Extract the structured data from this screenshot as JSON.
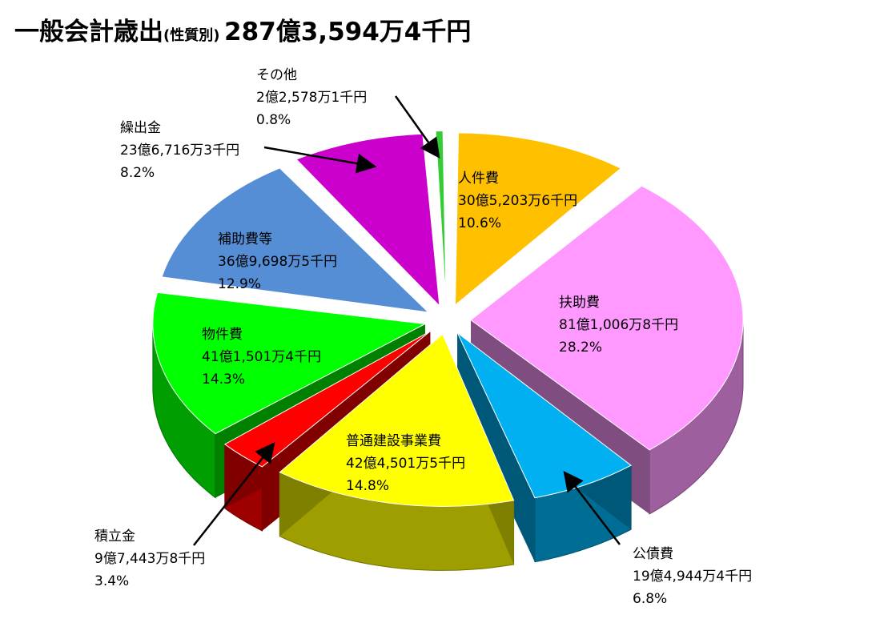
{
  "title": {
    "main": "一般会計歳出",
    "sub": "(性質別)",
    "total": "287億3,594万4千円"
  },
  "chart_data": {
    "type": "pie",
    "title": "一般会計歳出(性質別) 287億3,594万4千円",
    "unit": "千円",
    "slices": [
      {
        "name": "人件費",
        "amount": "30億5,203万6千円",
        "value": 3052036,
        "percent": 10.6,
        "color": "#ffc000"
      },
      {
        "name": "扶助費",
        "amount": "81億1,006万8千円",
        "value": 8110068,
        "percent": 28.2,
        "color": "#ff99ff"
      },
      {
        "name": "公債費",
        "amount": "19億4,944万4千円",
        "value": 1949444,
        "percent": 6.8,
        "color": "#00b0f0"
      },
      {
        "name": "普通建設事業費",
        "amount": "42億4,501万5千円",
        "value": 4245015,
        "percent": 14.8,
        "color": "#ffff00"
      },
      {
        "name": "積立金",
        "amount": "9億7,443万8千円",
        "value": 974438,
        "percent": 3.4,
        "color": "#ff0000"
      },
      {
        "name": "物件費",
        "amount": "41億1,501万4千円",
        "value": 4115014,
        "percent": 14.3,
        "color": "#00ff00"
      },
      {
        "name": "補助費等",
        "amount": "36億9,698万5千円",
        "value": 3696985,
        "percent": 12.9,
        "color": "#558ed5"
      },
      {
        "name": "繰出金",
        "amount": "23億6,716万3千円",
        "value": 2367163,
        "percent": 8.2,
        "color": "#cc00cc"
      },
      {
        "name": "その他",
        "amount": "2億2,578万1千円",
        "value": 225781,
        "percent": 0.8,
        "color": "#33cc33"
      }
    ]
  }
}
